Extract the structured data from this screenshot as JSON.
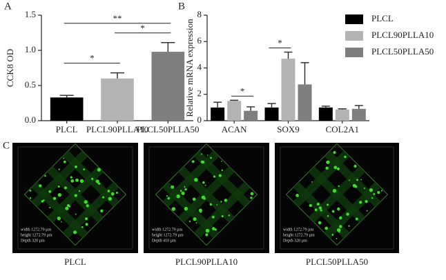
{
  "chart_data": [
    {
      "type": "bar",
      "label": "A",
      "ylabel": "CCK8  OD",
      "categories": [
        "PLCL",
        "PLCL90PLLA10",
        "PLCL50PLLA50"
      ],
      "values": [
        0.33,
        0.6,
        0.98
      ],
      "errors": [
        0.03,
        0.08,
        0.13
      ],
      "colors": [
        "#000000",
        "#b3b3b3",
        "#7f7f7f"
      ],
      "ylim": [
        0,
        1.5
      ],
      "yticks": [
        {
          "value": 0,
          "label": "0.0"
        },
        {
          "value": 0.5,
          "label": "0.5"
        },
        {
          "value": 1,
          "label": "1.0"
        },
        {
          "value": 1.5,
          "label": "1.5"
        }
      ],
      "annotations": [
        {
          "text": "*",
          "from": 0,
          "to": 1
        },
        {
          "text": "*",
          "from": 1,
          "to": 2
        },
        {
          "text": "**",
          "from": 0,
          "to": 2
        }
      ]
    },
    {
      "type": "bar",
      "label": "B",
      "ylabel": "Relative mRNA expression",
      "categories": [
        "ACAN",
        "SOX9",
        "COL2A1"
      ],
      "series": [
        {
          "name": "PLCL",
          "color": "#000000",
          "values": [
            1.0,
            1.0,
            1.0
          ],
          "errors": [
            0.4,
            0.3,
            0.1
          ]
        },
        {
          "name": "PLCL90PLLA10",
          "color": "#b3b3b3",
          "values": [
            1.5,
            4.7,
            0.85
          ],
          "errors": [
            0.05,
            0.5,
            0.05
          ]
        },
        {
          "name": "PLCL50PLLA50",
          "color": "#7f7f7f",
          "values": [
            0.75,
            2.75,
            0.9
          ],
          "errors": [
            0.3,
            1.65,
            0.25
          ]
        }
      ],
      "ylim": [
        0,
        8
      ],
      "yticks": [
        0,
        2,
        4,
        6,
        8
      ],
      "legend": "right",
      "annotations": [
        {
          "text": "*",
          "category": 0,
          "from": 1,
          "to": 2
        },
        {
          "text": "*",
          "category": 1,
          "from": 0,
          "to": 1
        }
      ]
    }
  ],
  "panel_c": {
    "label": "C",
    "images": [
      {
        "caption": "PLCL",
        "info": [
          "width 1272.79 µm",
          "height 1272.79 µm",
          "Depth 320 µm"
        ]
      },
      {
        "caption": "PLCL90PLLA10",
        "info": [
          "width 1272.79 µm",
          "height 1272.79 µm",
          "Depth 410 µm"
        ]
      },
      {
        "caption": "PLCL50PLLA50",
        "info": [
          "width 1272.79 µm",
          "height 1272.79 µm",
          "Depth 320 µm"
        ]
      }
    ]
  }
}
